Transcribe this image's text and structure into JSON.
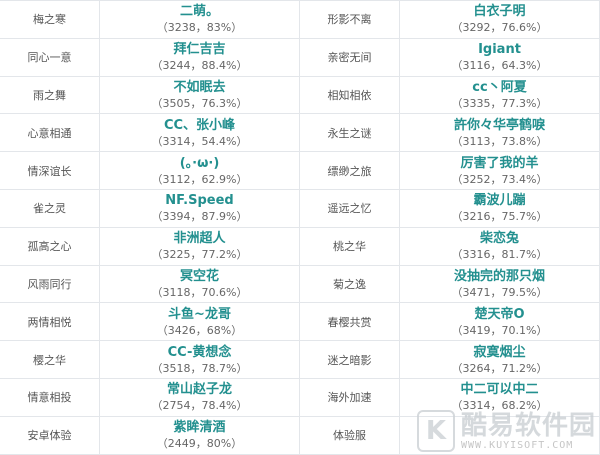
{
  "rows": [
    {
      "l1": "梅之寒",
      "n1": "二萌。",
      "s1": "（3238，83%）",
      "l2": "形影不离",
      "n2": "白衣子明",
      "s2": "（3292，76.6%）"
    },
    {
      "l1": "同心一意",
      "n1": "拜仁吉吉",
      "s1": "（3244，88.4%）",
      "l2": "亲密无间",
      "n2": "Igiant",
      "s2": "（3116，64.3%）"
    },
    {
      "l1": "雨之舞",
      "n1": "不如眠去",
      "s1": "（3505，76.3%）",
      "l2": "相知相依",
      "n2": "cc丶阿夏",
      "s2": "（3335，77.3%）"
    },
    {
      "l1": "心意相通",
      "n1": "CC、张小峰",
      "s1": "（3314，54.4%）",
      "l2": "永生之谜",
      "n2": "許你々华亭鹤唳",
      "s2": "（3113，73.8%）"
    },
    {
      "l1": "情深谊长",
      "n1": "(。·ω·)",
      "s1": "（3112，62.9%）",
      "l2": "缥缈之旅",
      "n2": "厉害了我的羊",
      "s2": "（3252，73.4%）"
    },
    {
      "l1": "雀之灵",
      "n1": "NF.Speed",
      "s1": "（3394，87.9%）",
      "l2": "遥远之忆",
      "n2": "霸波儿蹦",
      "s2": "（3216，75.7%）"
    },
    {
      "l1": "孤高之心",
      "n1": "非洲超人",
      "s1": "（3225，77.2%）",
      "l2": "桃之华",
      "n2": "柴恋兔",
      "s2": "（3316，81.7%）"
    },
    {
      "l1": "风雨同行",
      "n1": "冥空花",
      "s1": "（3118，70.6%）",
      "l2": "菊之逸",
      "n2": "没抽完的那只烟",
      "s2": "（3471，79.5%）"
    },
    {
      "l1": "两情相悦",
      "n1": "斗鱼~龙哥",
      "s1": "（3426，68%）",
      "l2": "春樱共赏",
      "n2": "楚天帝O",
      "s2": "（3419，70.1%）"
    },
    {
      "l1": "樱之华",
      "n1": "CC-黄想念",
      "s1": "（3518，78.7%）",
      "l2": "迷之暗影",
      "n2": "寂寞烟尘",
      "s2": "（3264，71.2%）"
    },
    {
      "l1": "情意相投",
      "n1": "常山赵子龙",
      "s1": "（2754，78.4%）",
      "l2": "海外加速",
      "n2": "中二可以中二",
      "s2": "（3314，68.2%）"
    },
    {
      "l1": "安卓体验",
      "n1": "紫眸清酒",
      "s1": "（2449，80%）",
      "l2": "体验服",
      "n2": "",
      "s2": ""
    }
  ],
  "watermark": {
    "logo_letter": "K",
    "text": "酷易软件园",
    "url": "WWW.KUYISOFT.COM"
  },
  "colors": {
    "name": "#23908f",
    "border": "#e3e6ea"
  }
}
